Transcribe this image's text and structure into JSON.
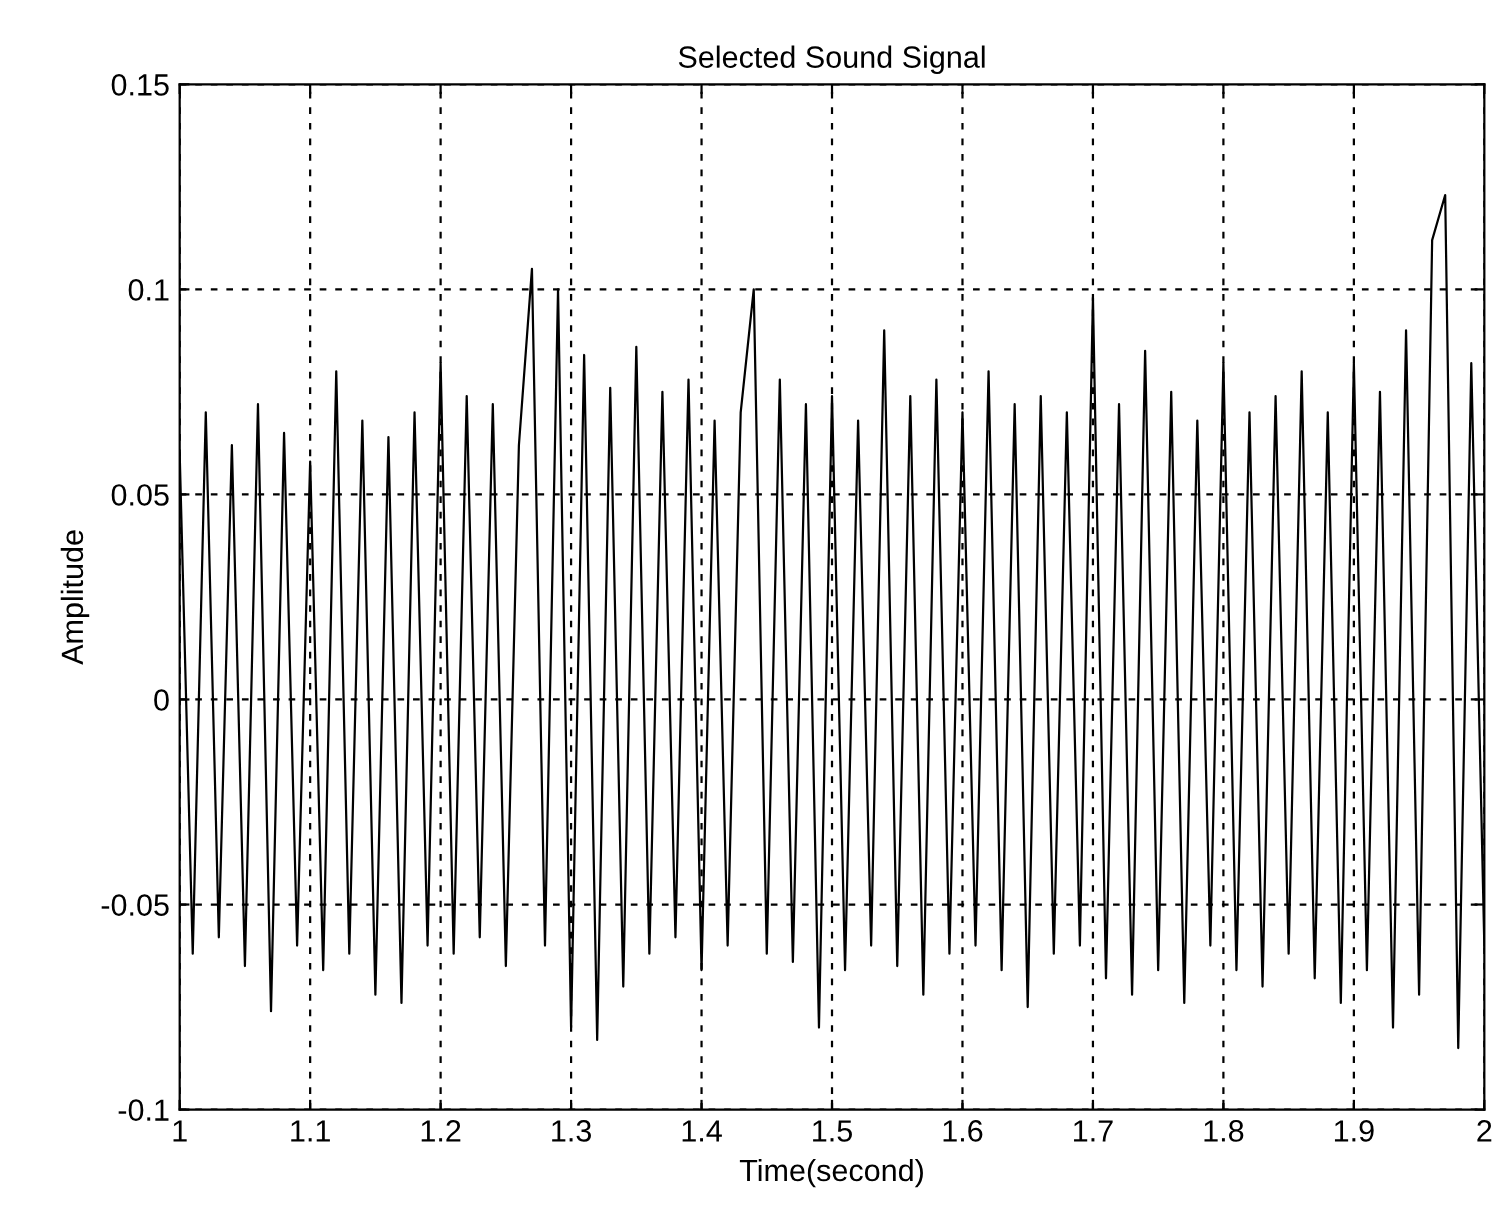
{
  "chart_data": {
    "type": "line",
    "title": "Selected Sound Signal",
    "xlabel": "Time(second)",
    "ylabel": "Amplitude",
    "x": [
      1.0,
      1.01,
      1.02,
      1.03,
      1.04,
      1.05,
      1.06,
      1.07,
      1.08,
      1.09,
      1.1,
      1.11,
      1.12,
      1.13,
      1.14,
      1.15,
      1.16,
      1.17,
      1.18,
      1.19,
      1.2,
      1.21,
      1.22,
      1.23,
      1.24,
      1.25,
      1.26,
      1.27,
      1.28,
      1.29,
      1.3,
      1.31,
      1.32,
      1.33,
      1.34,
      1.35,
      1.36,
      1.37,
      1.38,
      1.39,
      1.4,
      1.41,
      1.42,
      1.43,
      1.44,
      1.45,
      1.46,
      1.47,
      1.48,
      1.49,
      1.5,
      1.51,
      1.52,
      1.53,
      1.54,
      1.55,
      1.56,
      1.57,
      1.58,
      1.59,
      1.6,
      1.61,
      1.62,
      1.63,
      1.64,
      1.65,
      1.66,
      1.67,
      1.68,
      1.69,
      1.7,
      1.71,
      1.72,
      1.73,
      1.74,
      1.75,
      1.76,
      1.77,
      1.78,
      1.79,
      1.8,
      1.81,
      1.82,
      1.83,
      1.84,
      1.85,
      1.86,
      1.87,
      1.88,
      1.89,
      1.9,
      1.91,
      1.92,
      1.93,
      1.94,
      1.95,
      1.96,
      1.97,
      1.98,
      1.99,
      2.0
    ],
    "series": [
      {
        "color": "#000000",
        "values": [
          0.06,
          -0.062,
          0.07,
          -0.058,
          0.062,
          -0.065,
          0.072,
          -0.076,
          0.065,
          -0.06,
          0.058,
          -0.066,
          0.08,
          -0.062,
          0.068,
          -0.072,
          0.064,
          -0.074,
          0.07,
          -0.06,
          0.082,
          -0.062,
          0.074,
          -0.058,
          0.072,
          -0.065,
          0.062,
          0.105,
          -0.06,
          0.1,
          -0.08,
          0.084,
          -0.083,
          0.076,
          -0.07,
          0.086,
          -0.062,
          0.075,
          -0.058,
          0.078,
          -0.066,
          0.068,
          -0.06,
          0.07,
          0.1,
          -0.062,
          0.078,
          -0.064,
          0.072,
          -0.08,
          0.074,
          -0.066,
          0.068,
          -0.06,
          0.09,
          -0.065,
          0.074,
          -0.072,
          0.078,
          -0.062,
          0.07,
          -0.06,
          0.08,
          -0.066,
          0.072,
          -0.075,
          0.074,
          -0.062,
          0.07,
          -0.06,
          0.098,
          -0.068,
          0.072,
          -0.072,
          0.085,
          -0.066,
          0.075,
          -0.074,
          0.068,
          -0.06,
          0.082,
          -0.066,
          0.07,
          -0.07,
          0.074,
          -0.062,
          0.08,
          -0.068,
          0.07,
          -0.074,
          0.082,
          -0.066,
          0.075,
          -0.08,
          0.09,
          -0.072,
          0.112,
          0.123,
          -0.085,
          0.082,
          -0.06
        ]
      }
    ],
    "xlim": [
      1,
      2
    ],
    "ylim": [
      -0.1,
      0.15
    ],
    "xticks": [
      1,
      1.1,
      1.2,
      1.3,
      1.4,
      1.5,
      1.6,
      1.7,
      1.8,
      1.9,
      2
    ],
    "yticks": [
      -0.1,
      -0.05,
      0,
      0.05,
      0.1,
      0.15
    ],
    "grid": true,
    "line_style": "solid",
    "marker": "none"
  }
}
